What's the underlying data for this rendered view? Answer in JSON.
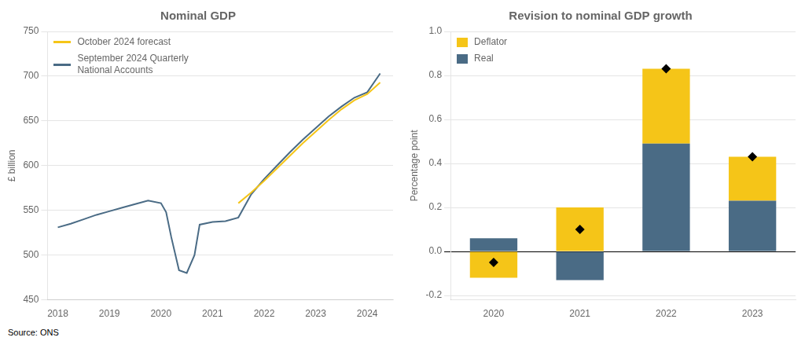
{
  "chart_data": [
    {
      "type": "line",
      "title": "Nominal GDP",
      "y_label": "£ billion",
      "xlim": [
        2017.8,
        2024.5
      ],
      "xticks": [
        2018,
        2019,
        2020,
        2021,
        2022,
        2023,
        2024
      ],
      "ylim": [
        450,
        750
      ],
      "yticks": [
        450,
        500,
        550,
        600,
        650,
        700,
        750
      ],
      "grid": "y",
      "legend": "upper left",
      "annotations": [
        "Source: ONS"
      ],
      "series": [
        {
          "name": "October 2024 forecast",
          "color": "#F5C518",
          "x": [
            2021.5,
            2021.75,
            2022.0,
            2022.25,
            2022.5,
            2022.75,
            2023.0,
            2023.25,
            2023.5,
            2023.75,
            2024.0,
            2024.25
          ],
          "values": [
            558,
            570,
            583,
            597,
            611,
            625,
            638,
            651,
            663,
            673,
            680,
            693
          ]
        },
        {
          "name": "September 2024 Quarterly\nNational Accounts",
          "color": "#4a6b85",
          "x": [
            2018.0,
            2018.25,
            2018.5,
            2018.75,
            2019.0,
            2019.25,
            2019.5,
            2019.75,
            2020.0,
            2020.1,
            2020.2,
            2020.35,
            2020.5,
            2020.65,
            2020.75,
            2021.0,
            2021.25,
            2021.5,
            2021.75,
            2022.0,
            2022.25,
            2022.5,
            2022.75,
            2023.0,
            2023.25,
            2023.5,
            2023.75,
            2024.0,
            2024.25
          ],
          "values": [
            531,
            535,
            540,
            545,
            549,
            553,
            557,
            561,
            558,
            548,
            520,
            483,
            480,
            500,
            534,
            537,
            538,
            542,
            568,
            585,
            600,
            615,
            629,
            642,
            655,
            666,
            676,
            682,
            703
          ]
        }
      ]
    },
    {
      "type": "bar",
      "title": "Revision to nominal GDP growth",
      "y_label": "Percentage point",
      "categories": [
        "2020",
        "2021",
        "2022",
        "2023"
      ],
      "ylim": [
        -0.22,
        1.0
      ],
      "yticks": [
        -0.2,
        {
          "value": 0.0,
          "label": "0.0"
        },
        0.2,
        0.4,
        0.6,
        0.8,
        {
          "value": 1.0,
          "label": "1.0"
        }
      ],
      "stacked": true,
      "grid": "y",
      "legend": "upper left",
      "series": [
        {
          "name": "Real",
          "color": "#4a6b85",
          "values": [
            0.06,
            -0.13,
            0.49,
            0.23
          ]
        },
        {
          "name": "Deflator",
          "color": "#F5C518",
          "values": [
            -0.12,
            0.2,
            0.34,
            0.2
          ]
        },
        {
          "type": "scatter",
          "marker": "diamond",
          "color": "black",
          "values": [
            -0.05,
            0.1,
            0.83,
            0.43
          ]
        }
      ]
    }
  ]
}
